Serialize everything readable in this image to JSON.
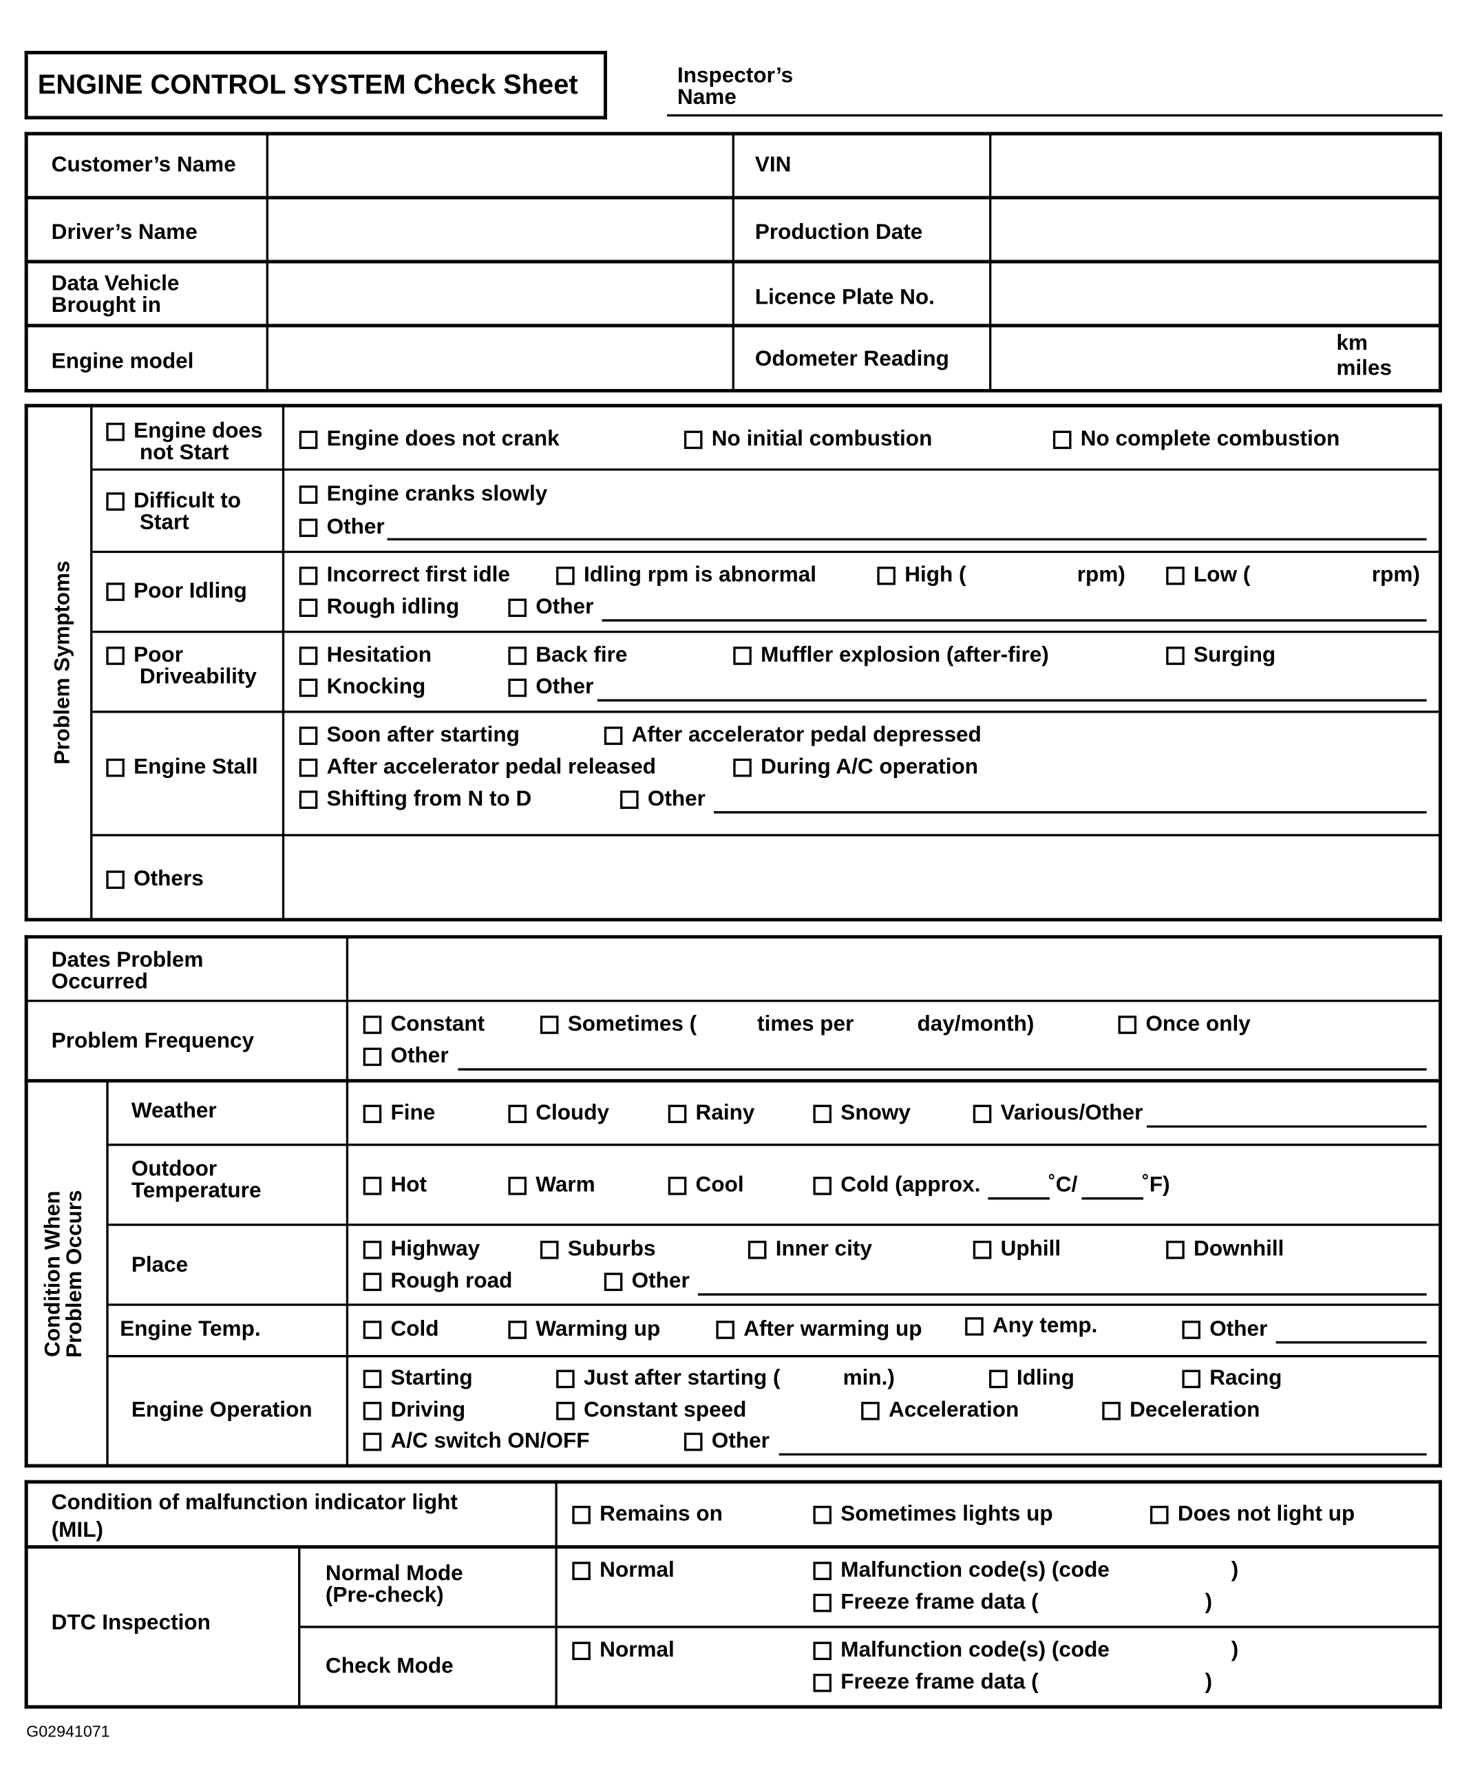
{
  "header": {
    "title": "ENGINE CONTROL SYSTEM Check Sheet",
    "inspector_label": "Inspector’s\nName",
    "inspector_value": ""
  },
  "vehicle_info": {
    "customer_name": "Customer’s Name",
    "vin": "VIN",
    "driver_name": "Driver’s Name",
    "production_date": "Production Date",
    "data_vehicle_brought_in": "Data Vehicle\nBrought in",
    "licence_plate": "Licence Plate No.",
    "engine_model": "Engine model",
    "odometer": "Odometer Reading",
    "unit_km": "km",
    "unit_miles": "miles"
  },
  "symptoms": {
    "section_label": "Problem Symptoms",
    "engine_does_not_start": {
      "label": "Engine does\n not Start",
      "options": [
        "Engine does not crank",
        "No initial combustion",
        "No complete combustion"
      ]
    },
    "difficult_to_start": {
      "label": "Difficult to\n Start",
      "options": [
        "Engine cranks slowly",
        "Other"
      ]
    },
    "poor_idling": {
      "label": "Poor Idling",
      "options": [
        "Incorrect first idle",
        "Idling rpm is abnormal",
        "High (",
        "Low (",
        "Rough idling",
        "Other"
      ],
      "rpm_close": "rpm)"
    },
    "poor_driveability": {
      "label": "Poor\n Driveability",
      "options": [
        "Hesitation",
        "Back fire",
        "Muffler explosion (after-fire)",
        "Surging",
        "Knocking",
        "Other"
      ]
    },
    "engine_stall": {
      "label": "Engine Stall",
      "options": [
        "Soon after starting",
        "After accelerator pedal depressed",
        "After accelerator pedal released",
        "During A/C operation",
        "Shifting from N to D",
        "Other"
      ]
    },
    "others": {
      "label": "Others"
    }
  },
  "conditions": {
    "dates_label": "Dates Problem\nOccurred",
    "frequency": {
      "label": "Problem Frequency",
      "options": [
        "Constant",
        "Sometimes (",
        "Once only",
        "Other"
      ],
      "times_per": "times per",
      "day_month": "day/month)"
    },
    "section_label": "Condition When\nProblem Occurs",
    "weather": {
      "label": "Weather",
      "options": [
        "Fine",
        "Cloudy",
        "Rainy",
        "Snowy",
        "Various/Other"
      ]
    },
    "outdoor_temp": {
      "label": "Outdoor\nTemperature",
      "options": [
        "Hot",
        "Warm",
        "Cool",
        "Cold (approx."
      ],
      "unit_c": "˚C/",
      "unit_f": "˚F)"
    },
    "place": {
      "label": "Place",
      "options": [
        "Highway",
        "Suburbs",
        "Inner city",
        "Uphill",
        "Downhill",
        "Rough road",
        "Other"
      ]
    },
    "engine_temp": {
      "label": "Engine Temp.",
      "options": [
        "Cold",
        "Warming up",
        "After warming up",
        "Any temp.",
        "Other"
      ]
    },
    "engine_operation": {
      "label": "Engine Operation",
      "options": [
        "Starting",
        "Just after starting (",
        "Idling",
        "Racing",
        "Driving",
        "Constant speed",
        "Acceleration",
        "Deceleration",
        "A/C switch ON/OFF",
        "Other"
      ],
      "min_close": "min.)"
    }
  },
  "mil": {
    "label": "Condition of malfunction indicator light\n(MIL)",
    "options": [
      "Remains on",
      "Sometimes lights up",
      "Does not light up"
    ]
  },
  "dtc": {
    "label": "DTC Inspection",
    "normal_mode": {
      "label": "Normal Mode\n(Pre-check)",
      "normal": "Normal",
      "malfunction_code": "Malfunction code(s) (code",
      "freeze_frame": "Freeze frame data (",
      "close": ")"
    },
    "check_mode": {
      "label": "Check Mode",
      "normal": "Normal",
      "malfunction_code": "Malfunction code(s) (code",
      "freeze_frame": "Freeze frame data (",
      "close": ")"
    }
  },
  "figure_code": "G02941071"
}
